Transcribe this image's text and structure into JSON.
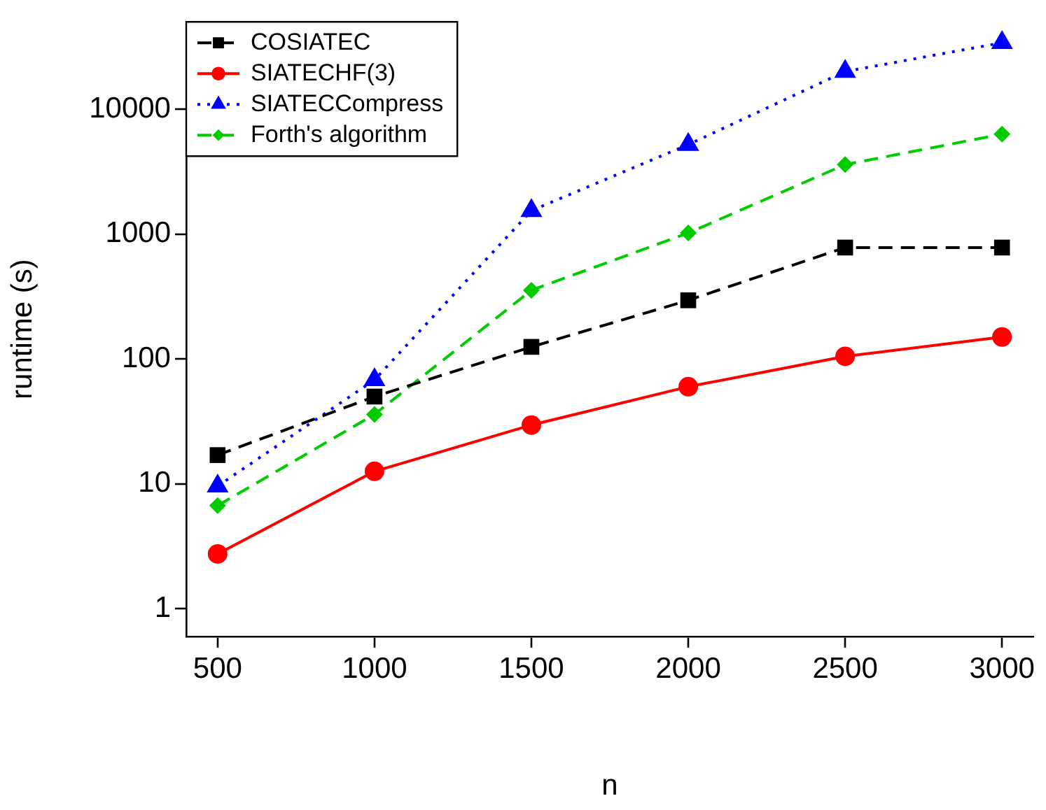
{
  "chart_data": {
    "type": "line",
    "xlabel": "n",
    "ylabel": "runtime (s)",
    "x": [
      500,
      1000,
      1500,
      2000,
      2500,
      3000
    ],
    "series": [
      {
        "name": "COSIATEC",
        "color": "#000000",
        "marker": "square",
        "line_style": "dashed",
        "values": [
          17,
          50,
          125,
          295,
          780,
          780
        ]
      },
      {
        "name": "SIATECHF(3)",
        "color": "#ff0000",
        "marker": "circle",
        "line_style": "solid",
        "values": [
          2.75,
          12.6,
          29.6,
          60,
          105,
          150
        ]
      },
      {
        "name": "SIATECCompress",
        "color": "#0000ff",
        "marker": "triangle",
        "line_style": "dotted",
        "values": [
          9.6,
          68,
          1540,
          5200,
          20000,
          34000
        ]
      },
      {
        "name": "Forth's algorithm",
        "color": "#00cc00",
        "marker": "diamond",
        "line_style": "dashed",
        "values": [
          6.7,
          36,
          355,
          1020,
          3600,
          6300
        ]
      }
    ],
    "log": "y",
    "xlim": [
      400,
      3100
    ],
    "xticks": [
      500,
      1000,
      1500,
      2000,
      2500,
      3000
    ],
    "ylim": [
      0.6,
      50000
    ],
    "yticks": [
      1,
      10,
      100,
      1000,
      10000
    ],
    "grid": false,
    "legend": "top left"
  }
}
